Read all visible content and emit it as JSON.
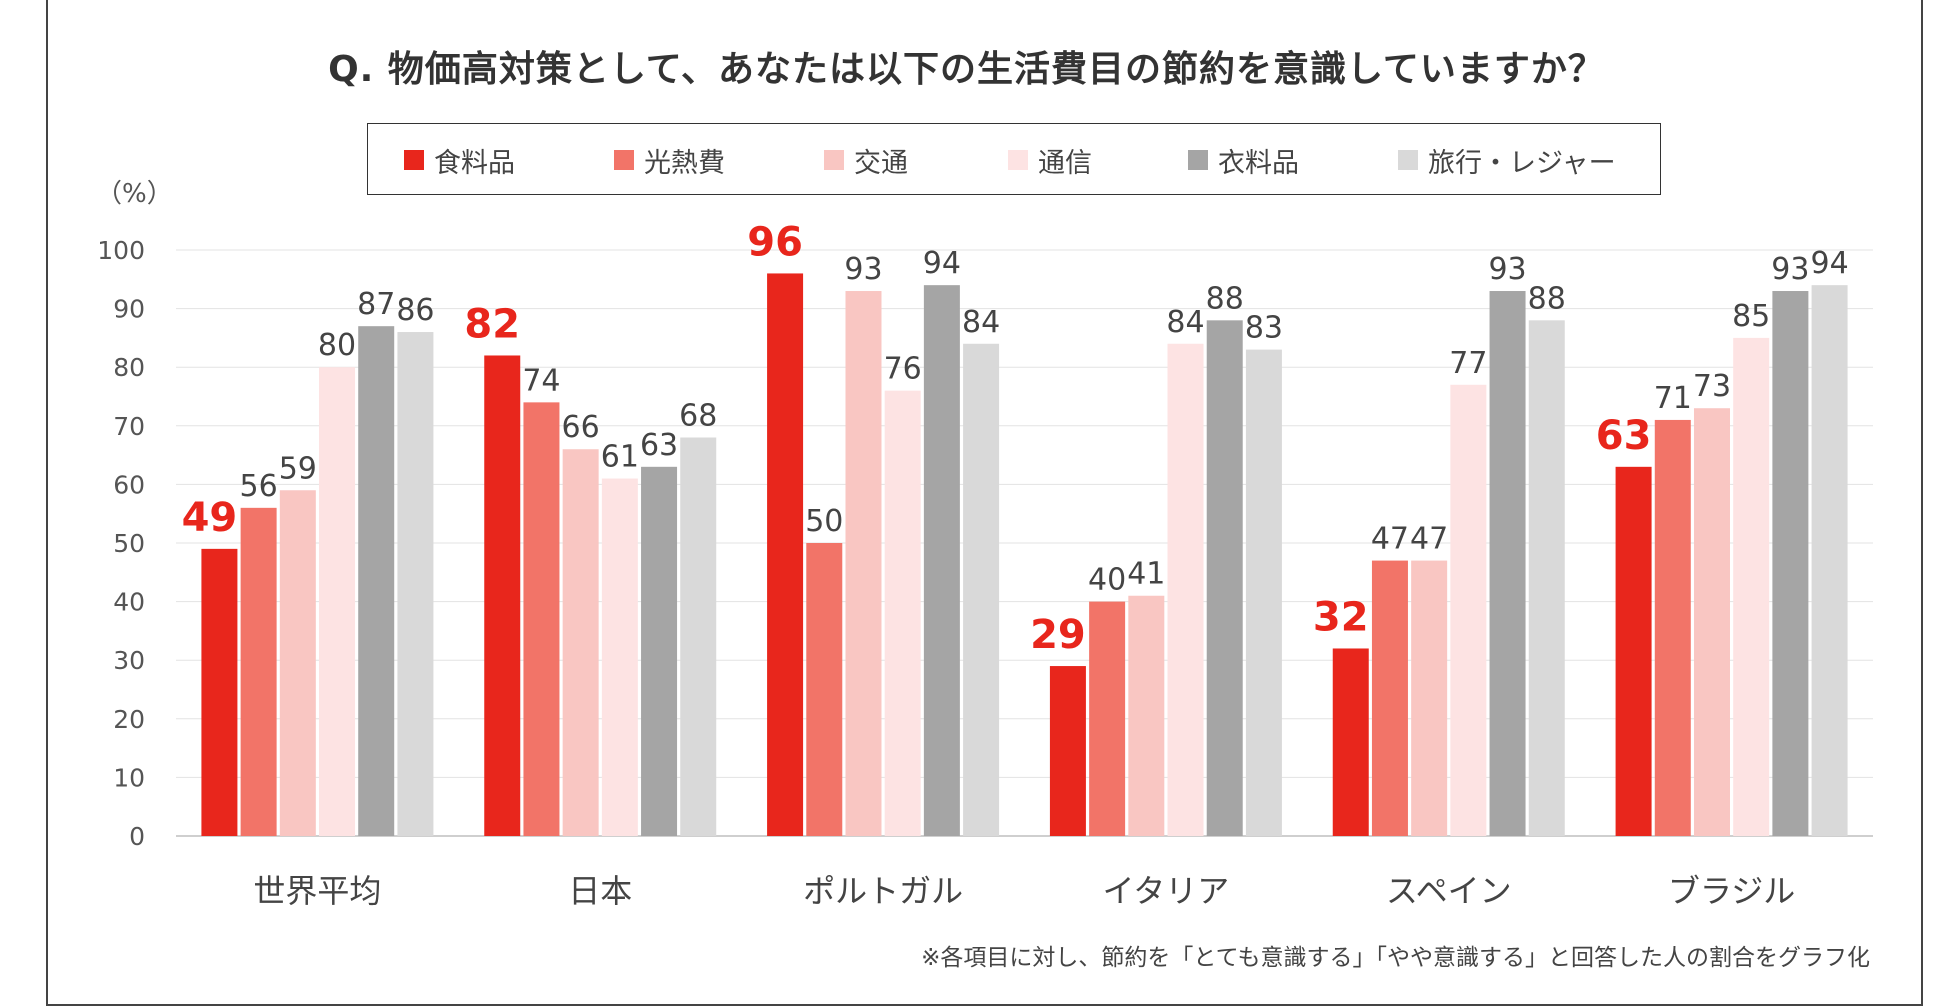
{
  "chart_data": {
    "type": "bar",
    "title": "Q. 物価高対策として、あなたは以下の生活費目の節約を意識していますか？",
    "ylabel": "（%）",
    "ylim": [
      0,
      100
    ],
    "yticks": [
      0,
      10,
      20,
      30,
      40,
      50,
      60,
      70,
      80,
      90,
      100
    ],
    "categories": [
      "世界平均",
      "日本",
      "ポルトガル",
      "イタリア",
      "スペイン",
      "ブラジル"
    ],
    "series": [
      {
        "name": "食料品",
        "color": "#e8261c",
        "values": [
          49,
          82,
          96,
          29,
          32,
          63
        ]
      },
      {
        "name": "光熱費",
        "color": "#f27468",
        "values": [
          56,
          74,
          50,
          40,
          47,
          71
        ]
      },
      {
        "name": "交通",
        "color": "#f9c6c2",
        "values": [
          59,
          66,
          93,
          41,
          47,
          73
        ]
      },
      {
        "name": "通信",
        "color": "#fde3e3",
        "values": [
          80,
          61,
          76,
          84,
          77,
          85
        ]
      },
      {
        "name": "衣料品",
        "color": "#a5a5a5",
        "values": [
          87,
          63,
          94,
          88,
          93,
          93
        ]
      },
      {
        "name": "旅行・レジャー",
        "color": "#d9d9d9",
        "values": [
          86,
          68,
          84,
          83,
          88,
          94
        ]
      }
    ],
    "legend_position": "top",
    "grid": true,
    "footnote": "※各項目に対し、節約を「とても意識する」「やや意識する」と回答した人の割合をグラフ化"
  }
}
